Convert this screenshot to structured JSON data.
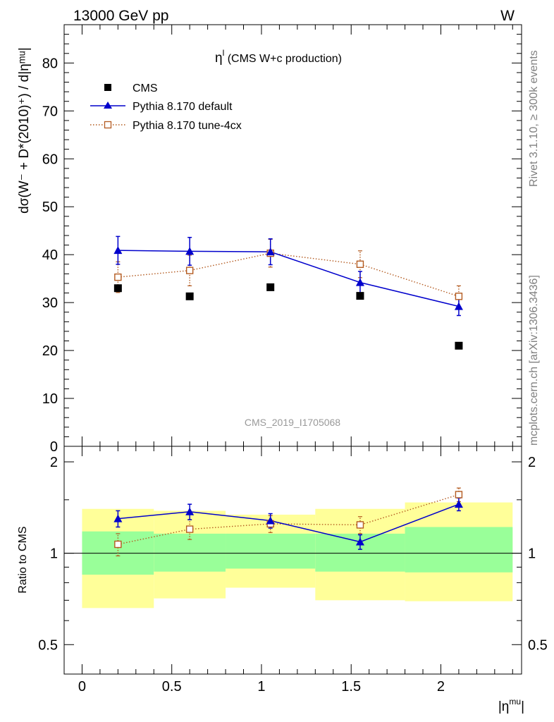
{
  "header": {
    "energy_label": "13000 GeV pp",
    "process_label": "W"
  },
  "side_labels": {
    "rivet": "Rivet 3.1.10, ≥ 300k events",
    "mcplots": "mcplots.cern.ch [arXiv:1306.3436]"
  },
  "analysis_id": "CMS_2019_I1705068",
  "colors": {
    "cms": "#000000",
    "default": "#0000cc",
    "tune": "#b35a1f",
    "band_inner": "#99ff99",
    "band_outer": "#ffff99"
  },
  "chart_data": [
    {
      "type": "scatter",
      "title_main": "η",
      "title_sup": "l",
      "title_rest": " (CMS W+c production)",
      "ylabel": "dσ(W⁻ + D*(2010)⁺) / d|ηᵐᵘ|",
      "xlim": [
        -0.1,
        2.45
      ],
      "ylim": [
        0,
        88
      ],
      "yticks": [
        0,
        10,
        20,
        30,
        40,
        50,
        60,
        70,
        80
      ],
      "legend_position": "top-left",
      "bins": [
        [
          0,
          0.4
        ],
        [
          0.4,
          0.8
        ],
        [
          0.8,
          1.3
        ],
        [
          1.3,
          1.8
        ],
        [
          1.8,
          2.4
        ]
      ],
      "series": [
        {
          "name": "CMS",
          "style": "marker",
          "x": [
            0.2,
            0.6,
            1.05,
            1.55,
            2.1
          ],
          "y": [
            33.0,
            31.3,
            33.2,
            31.4,
            21.0
          ]
        },
        {
          "name": "Pythia 8.170 default",
          "style": "line-triangle",
          "x": [
            0.2,
            0.6,
            1.05,
            1.55,
            2.1
          ],
          "y": [
            40.9,
            40.7,
            40.6,
            34.2,
            29.2
          ],
          "err": [
            2.9,
            2.9,
            2.7,
            2.3,
            1.9
          ]
        },
        {
          "name": "Pythia 8.170 tune-4cx",
          "style": "dotted-square",
          "x": [
            0.2,
            0.6,
            1.05,
            1.55,
            2.1
          ],
          "y": [
            35.3,
            36.7,
            40.3,
            38.0,
            31.3
          ],
          "err": [
            3.2,
            3.2,
            2.9,
            2.8,
            2.2
          ]
        }
      ]
    },
    {
      "type": "scatter",
      "ylabel": "Ratio to CMS",
      "xlabel": "|ηmu|",
      "xlabel_main": "|η",
      "xlabel_sup": "mu",
      "xlabel_end": "|",
      "xlim": [
        -0.1,
        2.45
      ],
      "ylim": [
        0.4,
        2.25
      ],
      "log_scale": true,
      "yticks": [
        0.5,
        1,
        2
      ],
      "xticks": [
        0,
        0.5,
        1,
        1.5,
        2
      ],
      "bands": {
        "edges": [
          0,
          0.4,
          0.8,
          1.3,
          1.8,
          2.4
        ],
        "inner_low": [
          0.85,
          0.87,
          0.89,
          0.87,
          0.865
        ],
        "inner_high": [
          1.18,
          1.16,
          1.16,
          1.16,
          1.22
        ],
        "outer_low": [
          0.66,
          0.71,
          0.77,
          0.7,
          0.695
        ],
        "outer_high": [
          1.4,
          1.38,
          1.34,
          1.4,
          1.47
        ]
      },
      "series": [
        {
          "name": "Pythia 8.170 default",
          "x": [
            0.2,
            0.6,
            1.05,
            1.55,
            2.1
          ],
          "y": [
            1.3,
            1.37,
            1.28,
            1.09,
            1.45
          ],
          "err": [
            0.08,
            0.08,
            0.07,
            0.06,
            0.07
          ]
        },
        {
          "name": "Pythia 8.170 tune-4cx",
          "x": [
            0.2,
            0.6,
            1.05,
            1.55,
            2.1
          ],
          "y": [
            1.07,
            1.2,
            1.25,
            1.24,
            1.56
          ],
          "err": [
            0.09,
            0.09,
            0.08,
            0.08,
            0.08
          ]
        }
      ]
    }
  ]
}
